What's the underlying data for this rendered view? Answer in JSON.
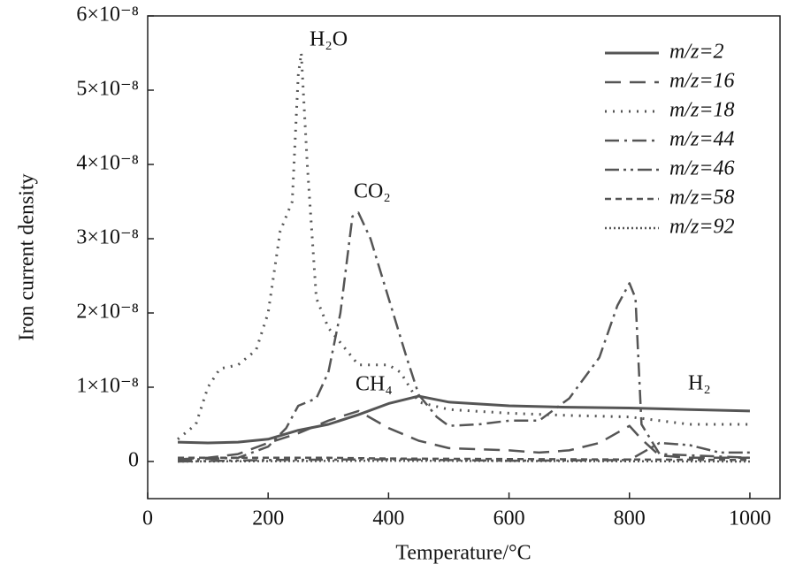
{
  "chart_data": {
    "type": "line",
    "x_label": "Temperature/°C",
    "y_label": "Iron current density",
    "xlim": [
      0,
      1050
    ],
    "xticks": [
      0,
      200,
      400,
      600,
      800,
      1000
    ],
    "ylim": [
      -5e-09,
      6e-08
    ],
    "yticks": [
      {
        "value": 0,
        "label": "0"
      },
      {
        "value": 1e-08,
        "label": "1×10⁻⁸"
      },
      {
        "value": 2e-08,
        "label": "2×10⁻⁸"
      },
      {
        "value": 3e-08,
        "label": "3×10⁻⁸"
      },
      {
        "value": 4e-08,
        "label": "4×10⁻⁸"
      },
      {
        "value": 5e-08,
        "label": "5×10⁻⁸"
      },
      {
        "value": 6e-08,
        "label": "6×10⁻⁸"
      }
    ],
    "legend": "upper right",
    "annotations": [
      "H₂O",
      "CO₂",
      "CH₄",
      "H₂"
    ],
    "series": [
      {
        "name": "m/z=2",
        "color": "#555555",
        "dash": "none",
        "width": 3,
        "x": [
          50,
          100,
          150,
          200,
          250,
          300,
          350,
          400,
          450,
          500,
          600,
          700,
          800,
          900,
          1000
        ],
        "values": [
          2.6e-09,
          2.5e-09,
          2.6e-09,
          3e-09,
          4.2e-09,
          5e-09,
          6.3e-09,
          7.8e-09,
          8.8e-09,
          8e-09,
          7.5e-09,
          7.3e-09,
          7.2e-09,
          7e-09,
          6.8e-09
        ]
      },
      {
        "name": "m/z=16",
        "color": "#555555",
        "dash": "18,10",
        "width": 2.5,
        "x": [
          50,
          100,
          150,
          200,
          250,
          300,
          350,
          400,
          450,
          500,
          600,
          650,
          700,
          750,
          800,
          820,
          850,
          900,
          1000
        ],
        "values": [
          3e-10,
          5e-10,
          1e-09,
          2.5e-09,
          3.8e-09,
          5.5e-09,
          6.8e-09,
          4.5e-09,
          2.8e-09,
          1.8e-09,
          1.5e-09,
          1.2e-09,
          1.5e-09,
          2.5e-09,
          4.8e-09,
          3e-09,
          8e-10,
          5e-10,
          5e-10
        ]
      },
      {
        "name": "m/z=18",
        "color": "#555555",
        "dash": "2,7",
        "width": 3,
        "x": [
          50,
          80,
          100,
          120,
          150,
          180,
          200,
          220,
          240,
          250,
          255,
          265,
          280,
          300,
          350,
          400,
          420,
          450,
          500,
          600,
          700,
          800,
          850,
          900,
          1000
        ],
        "values": [
          3e-09,
          5e-09,
          1e-08,
          1.25e-08,
          1.3e-08,
          1.5e-08,
          2e-08,
          3.1e-08,
          3.5e-08,
          5.2e-08,
          5.5e-08,
          4e-08,
          2.2e-08,
          1.8e-08,
          1.3e-08,
          1.3e-08,
          1.2e-08,
          8e-09,
          7e-09,
          6.5e-09,
          6.2e-09,
          6e-09,
          5.5e-09,
          5e-09,
          5e-09
        ]
      },
      {
        "name": "m/z=44",
        "color": "#555555",
        "dash": "16,6,3,6",
        "width": 2.5,
        "x": [
          50,
          150,
          200,
          230,
          250,
          280,
          300,
          320,
          340,
          350,
          370,
          400,
          430,
          450,
          480,
          500,
          550,
          600,
          650,
          700,
          750,
          780,
          800,
          810,
          820,
          850,
          1000
        ],
        "values": [
          2e-10,
          5e-10,
          2e-09,
          4.5e-09,
          7.5e-09,
          8.5e-09,
          1.2e-08,
          2e-08,
          3.3e-08,
          3.35e-08,
          3e-08,
          2.2e-08,
          1.4e-08,
          9e-09,
          6e-09,
          4.8e-09,
          5e-09,
          5.5e-09,
          5.5e-09,
          8.5e-09,
          1.4e-08,
          2.1e-08,
          2.4e-08,
          2.2e-08,
          5e-09,
          1e-09,
          5e-10
        ]
      },
      {
        "name": "m/z=46",
        "color": "#555555",
        "dash": "16,5,3,5,3,5",
        "width": 2.5,
        "x": [
          50,
          200,
          400,
          600,
          800,
          850,
          900,
          950,
          1000
        ],
        "values": [
          0,
          2e-10,
          3e-10,
          1e-10,
          2e-10,
          2.5e-09,
          2.2e-09,
          1.2e-09,
          1.2e-09
        ]
      },
      {
        "name": "m/z=58",
        "color": "#555555",
        "dash": "7,5",
        "width": 2.5,
        "x": [
          50,
          300,
          400,
          1000
        ],
        "values": [
          5e-10,
          5e-10,
          4e-10,
          2e-10
        ]
      },
      {
        "name": "m/z=92",
        "color": "#555555",
        "dash": "2,3",
        "width": 2.5,
        "x": [
          50,
          400,
          1000
        ],
        "values": [
          0,
          1e-10,
          0
        ]
      }
    ]
  }
}
